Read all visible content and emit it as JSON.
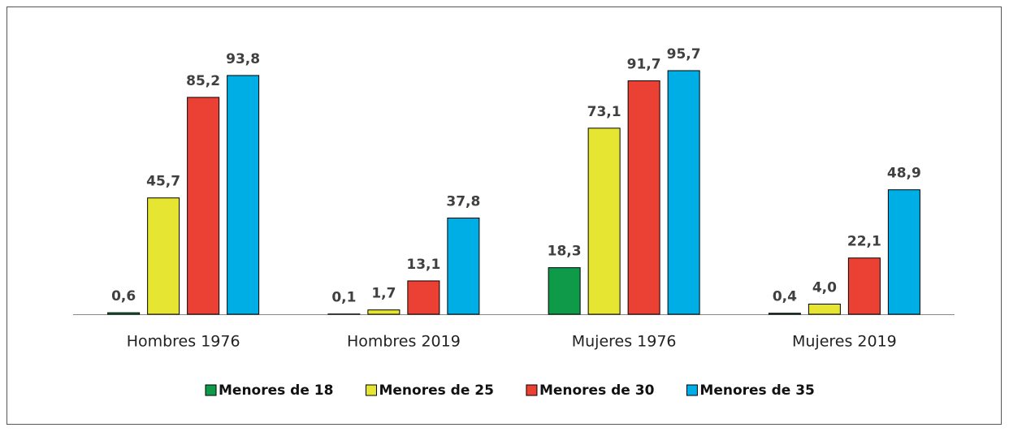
{
  "chart_data": {
    "type": "bar",
    "categories": [
      "Hombres 1976",
      "Hombres 2019",
      "Mujeres 1976",
      "Mujeres 2019"
    ],
    "series": [
      {
        "name": "Menores de 18",
        "color": "#0f9a4a",
        "values": [
          0.6,
          0.1,
          18.3,
          0.4
        ],
        "value_labels": [
          "0,6",
          "0,1",
          "18,3",
          "0,4"
        ]
      },
      {
        "name": "Menores de 25",
        "color": "#e5e532",
        "values": [
          45.7,
          1.7,
          73.1,
          4.0
        ],
        "value_labels": [
          "45,7",
          "1,7",
          "73,1",
          "4,0"
        ]
      },
      {
        "name": "Menores de 30",
        "color": "#eb4034",
        "values": [
          85.2,
          13.1,
          91.7,
          22.1
        ],
        "value_labels": [
          "85,2",
          "13,1",
          "91,7",
          "22,1"
        ]
      },
      {
        "name": "Menores de 35",
        "color": "#00aee6",
        "values": [
          93.8,
          37.8,
          95.7,
          48.9
        ],
        "value_labels": [
          "93,8",
          "37,8",
          "95,7",
          "48,9"
        ]
      }
    ],
    "legend": "bottom"
  }
}
